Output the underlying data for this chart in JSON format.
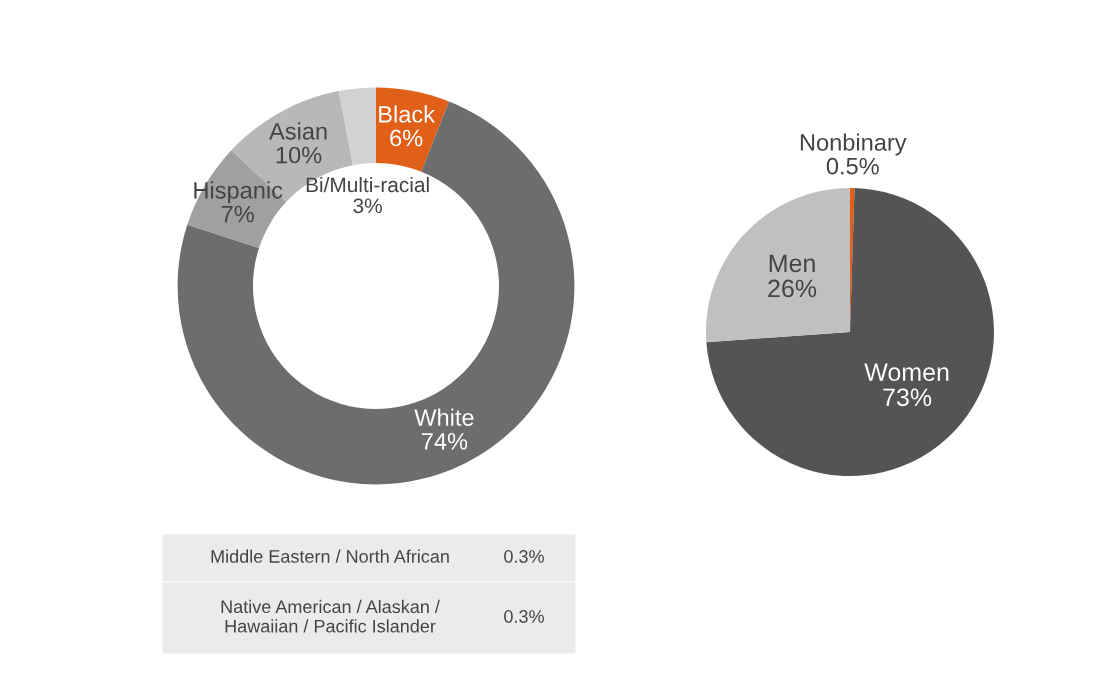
{
  "chart_data": [
    {
      "type": "donut",
      "categories": [
        "Black",
        "White",
        "Hispanic",
        "Asian",
        "Bi/Multi-racial"
      ],
      "values": [
        6,
        74,
        7,
        10,
        3
      ],
      "value_labels": [
        "6%",
        "74%",
        "7%",
        "10%",
        "3%"
      ],
      "colors": [
        "#e0601a",
        "#6d6d6f",
        "#a0a0a2",
        "#b8b8ba",
        "#d2d2d4"
      ],
      "annotations": [
        "Middle Eastern / North African",
        "0.3%",
        "Native American / Alaskan /\nHawaiian / Pacific Islander",
        "0.3%"
      ]
    },
    {
      "type": "pie",
      "categories": [
        "Nonbinary",
        "Women",
        "Men"
      ],
      "values": [
        0.5,
        73,
        26
      ],
      "value_labels": [
        "0.5%",
        "73%",
        "26%"
      ],
      "colors": [
        "#e0601a",
        "#545456",
        "#c0c0c2"
      ]
    }
  ]
}
